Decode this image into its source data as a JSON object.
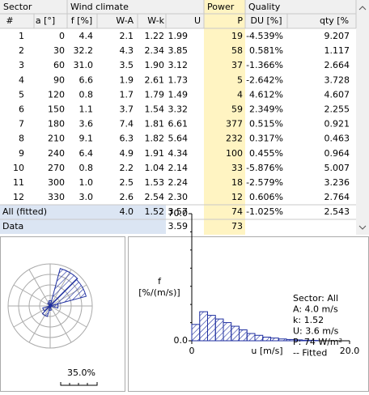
{
  "table": {
    "groups": [
      "Sector",
      "Wind climate",
      "Power",
      "Quality"
    ],
    "columns": [
      "#",
      "a [°]",
      "f [%]",
      "W-A",
      "W-k",
      "U",
      "P",
      "DU [%]",
      "qty [%"
    ],
    "rows": [
      [
        "1",
        "0",
        "4.4",
        "2.1",
        "1.22",
        "1.99",
        "19",
        "-4.539%",
        "9.207"
      ],
      [
        "2",
        "30",
        "32.2",
        "4.3",
        "2.34",
        "3.85",
        "58",
        "0.581%",
        "1.117"
      ],
      [
        "3",
        "60",
        "31.0",
        "3.5",
        "1.90",
        "3.12",
        "37",
        "-1.366%",
        "2.664"
      ],
      [
        "4",
        "90",
        "6.6",
        "1.9",
        "2.61",
        "1.73",
        "5",
        "-2.642%",
        "3.728"
      ],
      [
        "5",
        "120",
        "0.8",
        "1.7",
        "1.79",
        "1.49",
        "4",
        "4.612%",
        "4.607"
      ],
      [
        "6",
        "150",
        "1.1",
        "3.7",
        "1.54",
        "3.32",
        "59",
        "2.349%",
        "2.255"
      ],
      [
        "7",
        "180",
        "3.6",
        "7.4",
        "1.81",
        "6.61",
        "377",
        "0.515%",
        "0.921"
      ],
      [
        "8",
        "210",
        "9.1",
        "6.3",
        "1.82",
        "5.64",
        "232",
        "0.317%",
        "0.463"
      ],
      [
        "9",
        "240",
        "6.4",
        "4.9",
        "1.91",
        "4.34",
        "100",
        "0.455%",
        "0.964"
      ],
      [
        "10",
        "270",
        "0.8",
        "2.2",
        "1.04",
        "2.14",
        "33",
        "-5.876%",
        "5.007"
      ],
      [
        "11",
        "300",
        "1.0",
        "2.5",
        "1.53",
        "2.24",
        "18",
        "-2.579%",
        "3.236"
      ],
      [
        "12",
        "330",
        "3.0",
        "2.6",
        "2.54",
        "2.30",
        "12",
        "0.606%",
        "2.764"
      ]
    ],
    "summary": [
      {
        "label": "All (fitted)",
        "cells": [
          null,
          "4.0",
          "1.52",
          "3.57",
          "74",
          "-1.025%",
          "2.543"
        ]
      },
      {
        "label": "Data",
        "cells": [
          null,
          null,
          null,
          "3.59",
          "73",
          null,
          null
        ]
      }
    ]
  },
  "rose": {
    "max": {
      "value": 35,
      "label": "35.0%"
    }
  },
  "histogram": {
    "type": "histogram",
    "ylabel": [
      "f",
      "[%/(m/s)]"
    ],
    "xlabel": "u [m/s]",
    "bins": [
      0,
      1,
      2,
      3,
      4,
      5,
      6,
      7,
      8,
      9,
      10,
      11,
      12,
      13,
      14,
      15,
      16
    ],
    "values": [
      9,
      16,
      14,
      12,
      10,
      8,
      6,
      4,
      3,
      2,
      1.5,
      1,
      0.7,
      0.5,
      0.3,
      0.2
    ],
    "color": "#1f2fa0",
    "xlim": [
      0,
      20
    ],
    "xticks": [
      0,
      {
        "value": 20,
        "label": "20.0"
      }
    ],
    "ylim": [
      0,
      70
    ],
    "yticks": [
      {
        "value": 0,
        "label": "0.0"
      },
      {
        "value": 70,
        "label": "70.0"
      }
    ],
    "legend": [
      "Sector: All",
      "A: 4.0 m/s",
      "k: 1.52",
      "U: 3.6 m/s",
      "P: 74 W/m²",
      "-- Fitted"
    ]
  }
}
